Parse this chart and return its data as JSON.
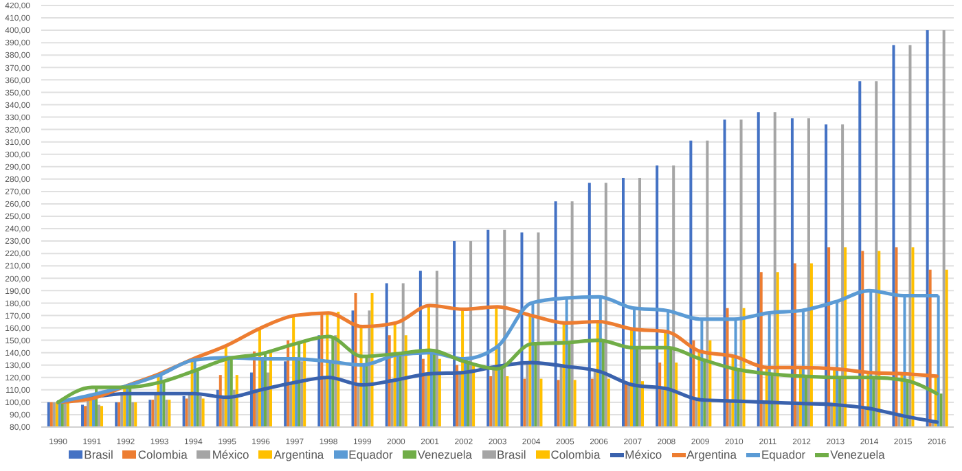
{
  "chart_data": {
    "type": "bar",
    "categories": [
      "1990",
      "1991",
      "1992",
      "1993",
      "1994",
      "1995",
      "1996",
      "1997",
      "1998",
      "1999",
      "2000",
      "2001",
      "2002",
      "2003",
      "2004",
      "2005",
      "2006",
      "2007",
      "2008",
      "2009",
      "2010",
      "2011",
      "2012",
      "2013",
      "2014",
      "2015",
      "2016"
    ],
    "series": [
      {
        "name": "Brasil",
        "color": "#4472c4",
        "values": [
          100,
          98,
          100,
          102,
          105,
          110,
          124,
          133,
          154,
          174,
          196,
          206,
          230,
          239,
          237,
          262,
          277,
          281,
          291,
          311,
          328,
          334,
          329,
          324,
          359,
          388,
          400
        ]
      },
      {
        "name": "Colombia",
        "color": "#ed7d31",
        "values": [
          100,
          97,
          100,
          102,
          103,
          122,
          141,
          150,
          173,
          188,
          154,
          135,
          130,
          121,
          119,
          118,
          119,
          117,
          132,
          150,
          176,
          205,
          212,
          225,
          222,
          225,
          207
        ]
      },
      {
        "name": "México",
        "color": "#a5a5a5",
        "values": [
          100,
          104,
          107,
          107,
          107,
          104,
          110,
          116,
          120,
          114,
          118,
          123,
          124,
          129,
          132,
          129,
          125,
          114,
          111,
          102,
          101,
          100,
          99,
          98,
          95,
          89,
          84
        ]
      },
      {
        "name": "Argentina",
        "color": "#ffc000",
        "values": [
          100,
          103,
          113,
          123,
          135,
          146,
          160,
          170,
          172,
          161,
          164,
          178,
          175,
          177,
          170,
          164,
          165,
          159,
          157,
          141,
          137,
          128,
          128,
          127,
          124,
          123,
          121
        ]
      },
      {
        "name": "Equador",
        "color": "#5b9bd5",
        "values": [
          100,
          106,
          113,
          122,
          134,
          136,
          135,
          135,
          133,
          130,
          138,
          140,
          135,
          145,
          180,
          184,
          185,
          176,
          174,
          167,
          167,
          172,
          174,
          181,
          190,
          186,
          186
        ]
      },
      {
        "name": "Venezuela",
        "color": "#70ad47",
        "values": [
          100,
          112,
          112,
          116,
          125,
          135,
          139,
          147,
          153,
          137,
          139,
          142,
          133,
          127,
          147,
          148,
          150,
          144,
          144,
          135,
          127,
          123,
          121,
          120,
          120,
          118,
          107
        ]
      },
      {
        "name": "Brasil",
        "color": "#a5a5a5",
        "values": [
          100,
          98,
          100,
          102,
          105,
          110,
          124,
          133,
          154,
          174,
          196,
          206,
          230,
          239,
          237,
          262,
          277,
          281,
          291,
          311,
          328,
          334,
          329,
          324,
          359,
          388,
          400
        ]
      },
      {
        "name": "Colombia",
        "color": "#ffc000",
        "values": [
          100,
          97,
          100,
          102,
          103,
          122,
          141,
          150,
          173,
          188,
          154,
          135,
          130,
          121,
          119,
          118,
          119,
          117,
          132,
          150,
          176,
          205,
          212,
          225,
          222,
          225,
          207
        ]
      },
      {
        "name": "México",
        "type": "line",
        "color": "#3a62ad",
        "values": [
          100,
          104,
          107,
          107,
          107,
          104,
          110,
          116,
          120,
          114,
          118,
          123,
          124,
          129,
          132,
          129,
          125,
          114,
          111,
          102,
          101,
          100,
          99,
          98,
          95,
          89,
          84
        ]
      },
      {
        "name": "Argentina",
        "type": "line",
        "color": "#ed7d31",
        "values": [
          100,
          103,
          113,
          123,
          135,
          146,
          160,
          170,
          172,
          161,
          164,
          178,
          175,
          177,
          170,
          164,
          165,
          159,
          157,
          141,
          137,
          128,
          128,
          127,
          124,
          123,
          121
        ]
      },
      {
        "name": "Equador",
        "type": "line",
        "color": "#5b9bd5",
        "values": [
          100,
          106,
          113,
          122,
          134,
          136,
          135,
          135,
          133,
          130,
          138,
          140,
          135,
          145,
          180,
          184,
          185,
          176,
          174,
          167,
          167,
          172,
          174,
          181,
          190,
          186,
          186
        ]
      },
      {
        "name": "Venezuela",
        "type": "line",
        "color": "#70ad47",
        "values": [
          100,
          112,
          112,
          116,
          125,
          135,
          139,
          147,
          153,
          137,
          139,
          142,
          133,
          127,
          147,
          148,
          150,
          144,
          144,
          135,
          127,
          123,
          121,
          120,
          120,
          118,
          107
        ]
      }
    ],
    "ylim": [
      80,
      420
    ],
    "yticks": [
      {
        "value": 80,
        "label": "80,00"
      },
      {
        "value": 90,
        "label": "90,00"
      },
      {
        "value": 100,
        "label": "100,00"
      },
      {
        "value": 110,
        "label": "110,00"
      },
      {
        "value": 120,
        "label": "120,00"
      },
      {
        "value": 130,
        "label": "130,00"
      },
      {
        "value": 140,
        "label": "140,00"
      },
      {
        "value": 150,
        "label": "150,00"
      },
      {
        "value": 160,
        "label": "160,00"
      },
      {
        "value": 170,
        "label": "170,00"
      },
      {
        "value": 180,
        "label": "180,00"
      },
      {
        "value": 190,
        "label": "190,00"
      },
      {
        "value": 200,
        "label": "200,00"
      },
      {
        "value": 210,
        "label": "210,00"
      },
      {
        "value": 220,
        "label": "220,00"
      },
      {
        "value": 230,
        "label": "230,00"
      },
      {
        "value": 240,
        "label": "240,00"
      },
      {
        "value": 250,
        "label": "250,00"
      },
      {
        "value": 260,
        "label": "260,00"
      },
      {
        "value": 270,
        "label": "270,00"
      },
      {
        "value": 280,
        "label": "280,00"
      },
      {
        "value": 290,
        "label": "290,00"
      },
      {
        "value": 300,
        "label": "300,00"
      },
      {
        "value": 310,
        "label": "310,00"
      },
      {
        "value": 320,
        "label": "320,00"
      },
      {
        "value": 330,
        "label": "330,00"
      },
      {
        "value": 340,
        "label": "340,00"
      },
      {
        "value": 350,
        "label": "350,00"
      },
      {
        "value": 360,
        "label": "360,00"
      },
      {
        "value": 370,
        "label": "370,00"
      },
      {
        "value": 380,
        "label": "380,00"
      },
      {
        "value": 390,
        "label": "390,00"
      },
      {
        "value": 400,
        "label": "400,00"
      },
      {
        "value": 410,
        "label": "410,00"
      },
      {
        "value": 420,
        "label": "420,00"
      }
    ],
    "grid": "y",
    "legend": "bottom",
    "marker": "none",
    "line_style": "solid"
  }
}
